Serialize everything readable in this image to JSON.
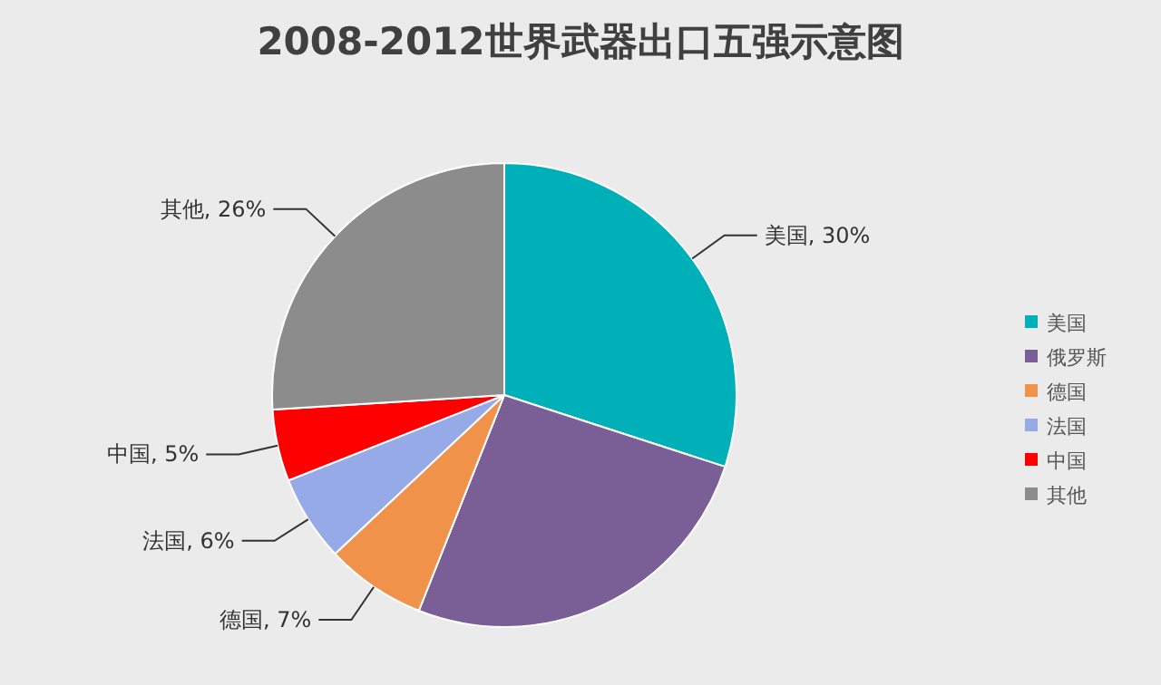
{
  "chart_data": {
    "type": "pie",
    "title": "2008-2012世界武器出口五强示意图",
    "categories": [
      "美国",
      "俄罗斯",
      "德国",
      "法国",
      "中国",
      "其他"
    ],
    "values": [
      30,
      26,
      7,
      6,
      5,
      26
    ],
    "colors": [
      "#00b0b9",
      "#7a5f96",
      "#f0924a",
      "#97aae8",
      "#ff0000",
      "#8c8c8c"
    ],
    "value_labels": [
      "美国, 30%",
      null,
      "德国, 7%",
      "法国, 6%",
      "中国, 5%",
      "其他, 26%"
    ],
    "legend": "right"
  }
}
